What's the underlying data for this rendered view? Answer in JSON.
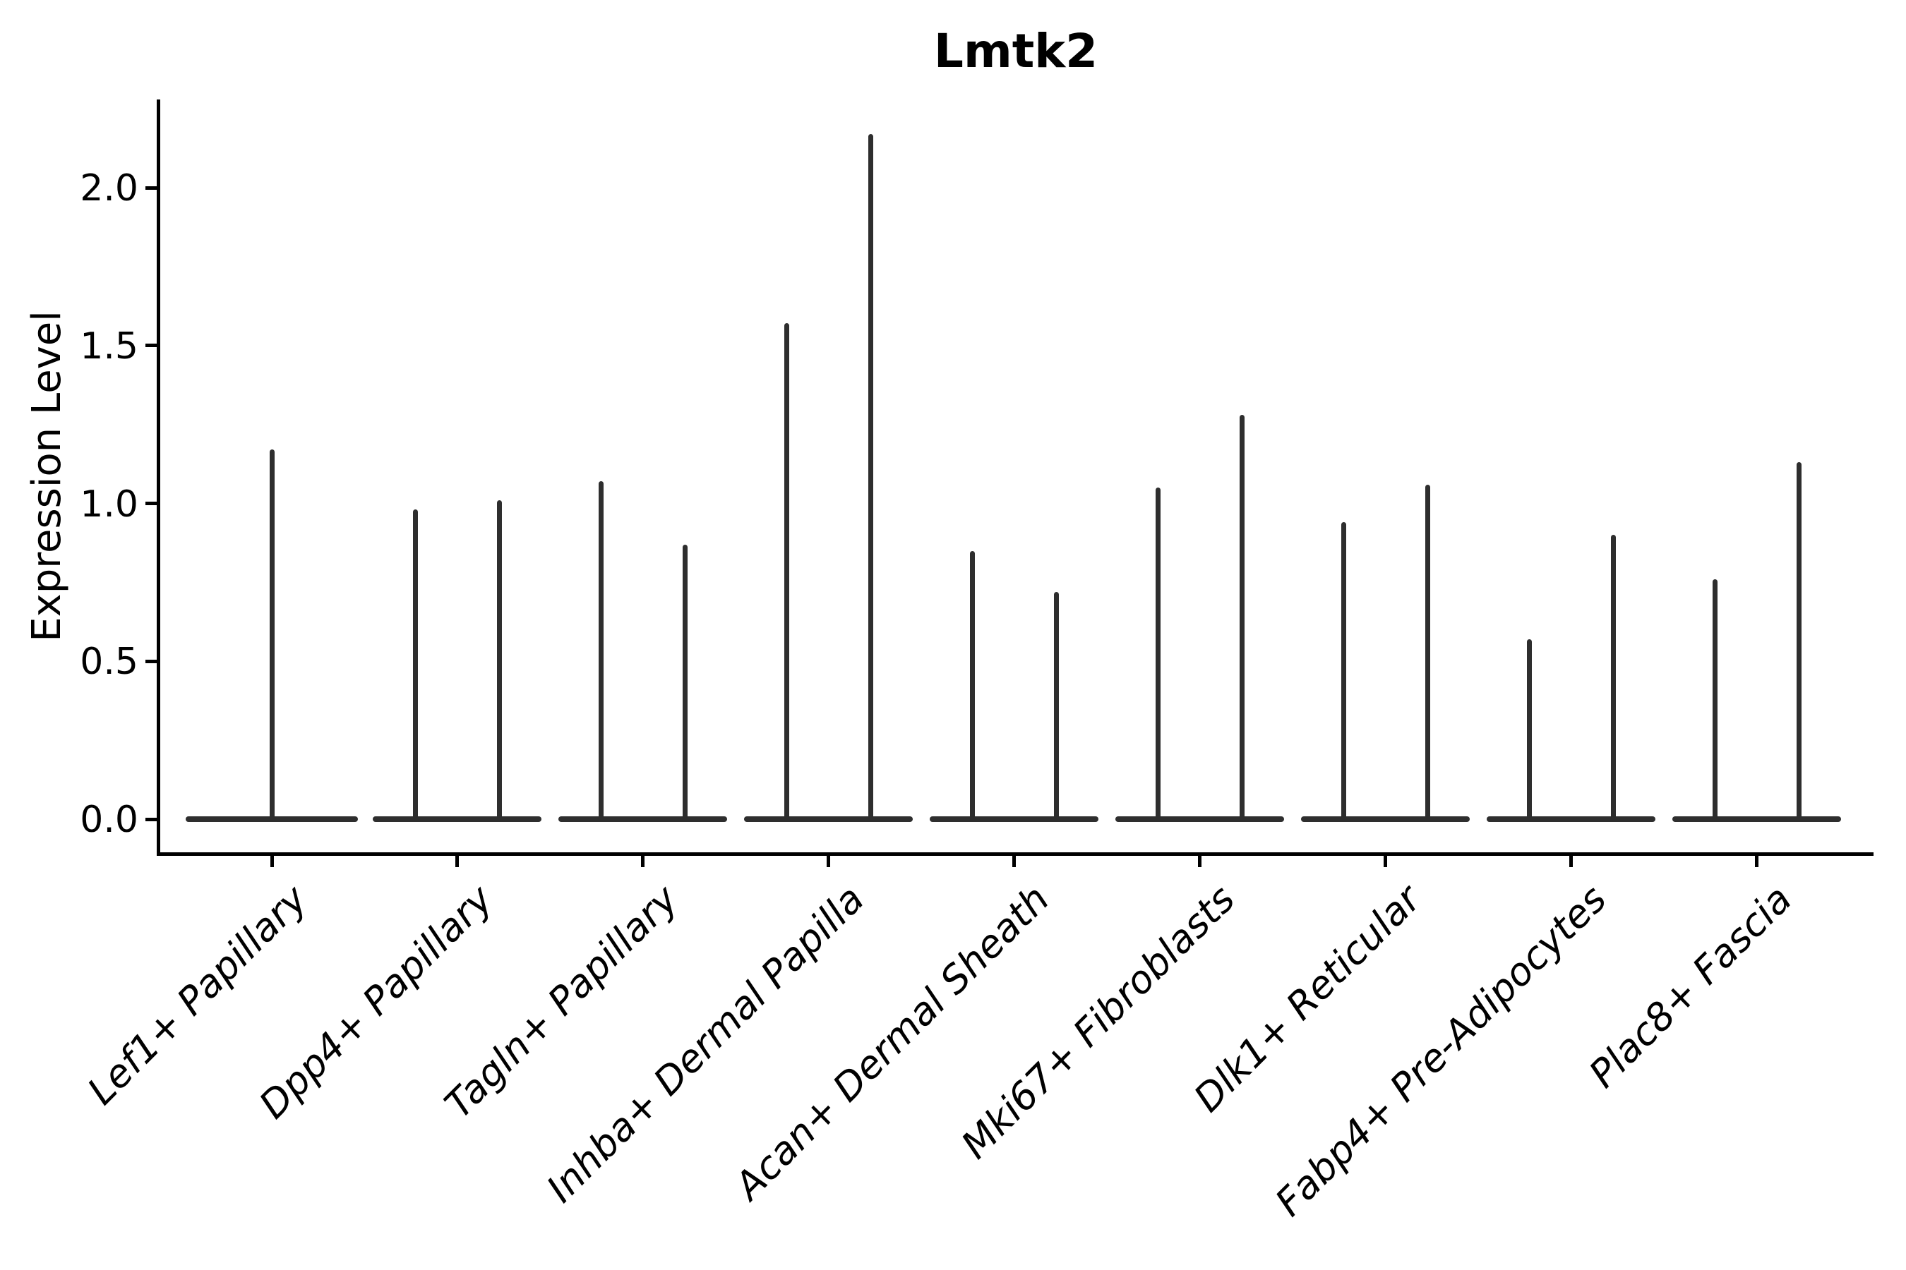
{
  "title": "Lmtk2",
  "y_axis": {
    "label": "Expression Level",
    "ticks": [
      "0.0",
      "0.5",
      "1.0",
      "1.5",
      "2.0"
    ],
    "tick_values": [
      0.0,
      0.5,
      1.0,
      1.5,
      2.0
    ]
  },
  "x_axis": {
    "categories": [
      "Lef1+ Papillary",
      "Dpp4+ Papillary",
      "Tagln+ Papillary",
      "Inhba+ Dermal Papilla",
      "Acan+ Dermal Sheath",
      "Mki67+ Fibroblasts",
      "Dlk1+ Reticular",
      "Fabp4+ Pre-Adipocytes",
      "Plac8+ Fascia"
    ]
  },
  "colors": {
    "violin": "#2e2e2e",
    "axis": "#000000"
  },
  "chart_data": {
    "type": "violin",
    "title": "Lmtk2",
    "xlabel": "",
    "ylabel": "Expression Level",
    "ylim": [
      -0.11,
      2.28
    ],
    "yticks": [
      0.0,
      0.5,
      1.0,
      1.5,
      2.0
    ],
    "grid": false,
    "legend": "none",
    "description": "Single-gene expression violin plot; each violin collapses to a flat base at 0 (most cells express 0) with one thin vertical spike rising to the maximum expression value. The first category has one violin; all other categories contain two side-by-side violins.",
    "baseline_value": 0.0,
    "categories": [
      "Lef1+ Papillary",
      "Dpp4+ Papillary",
      "Tagln+ Papillary",
      "Inhba+ Dermal Papilla",
      "Acan+ Dermal Sheath",
      "Mki67+ Fibroblasts",
      "Dlk1+ Reticular",
      "Fabp4+ Pre-Adipocytes",
      "Plac8+ Fascia"
    ],
    "series": [
      {
        "category": "Lef1+ Papillary",
        "violin_max_values": [
          1.17
        ]
      },
      {
        "category": "Dpp4+ Papillary",
        "violin_max_values": [
          0.98,
          1.01
        ]
      },
      {
        "category": "Tagln+ Papillary",
        "violin_max_values": [
          1.07,
          0.87
        ]
      },
      {
        "category": "Inhba+ Dermal Papilla",
        "violin_max_values": [
          1.57,
          2.17
        ]
      },
      {
        "category": "Acan+ Dermal Sheath",
        "violin_max_values": [
          0.85,
          0.72
        ]
      },
      {
        "category": "Mki67+ Fibroblasts",
        "violin_max_values": [
          1.05,
          1.28
        ]
      },
      {
        "category": "Dlk1+ Reticular",
        "violin_max_values": [
          0.94,
          1.06
        ]
      },
      {
        "category": "Fabp4+ Pre-Adipocytes",
        "violin_max_values": [
          0.57,
          0.9
        ]
      },
      {
        "category": "Plac8+ Fascia",
        "violin_max_values": [
          0.76,
          1.13
        ]
      }
    ]
  }
}
